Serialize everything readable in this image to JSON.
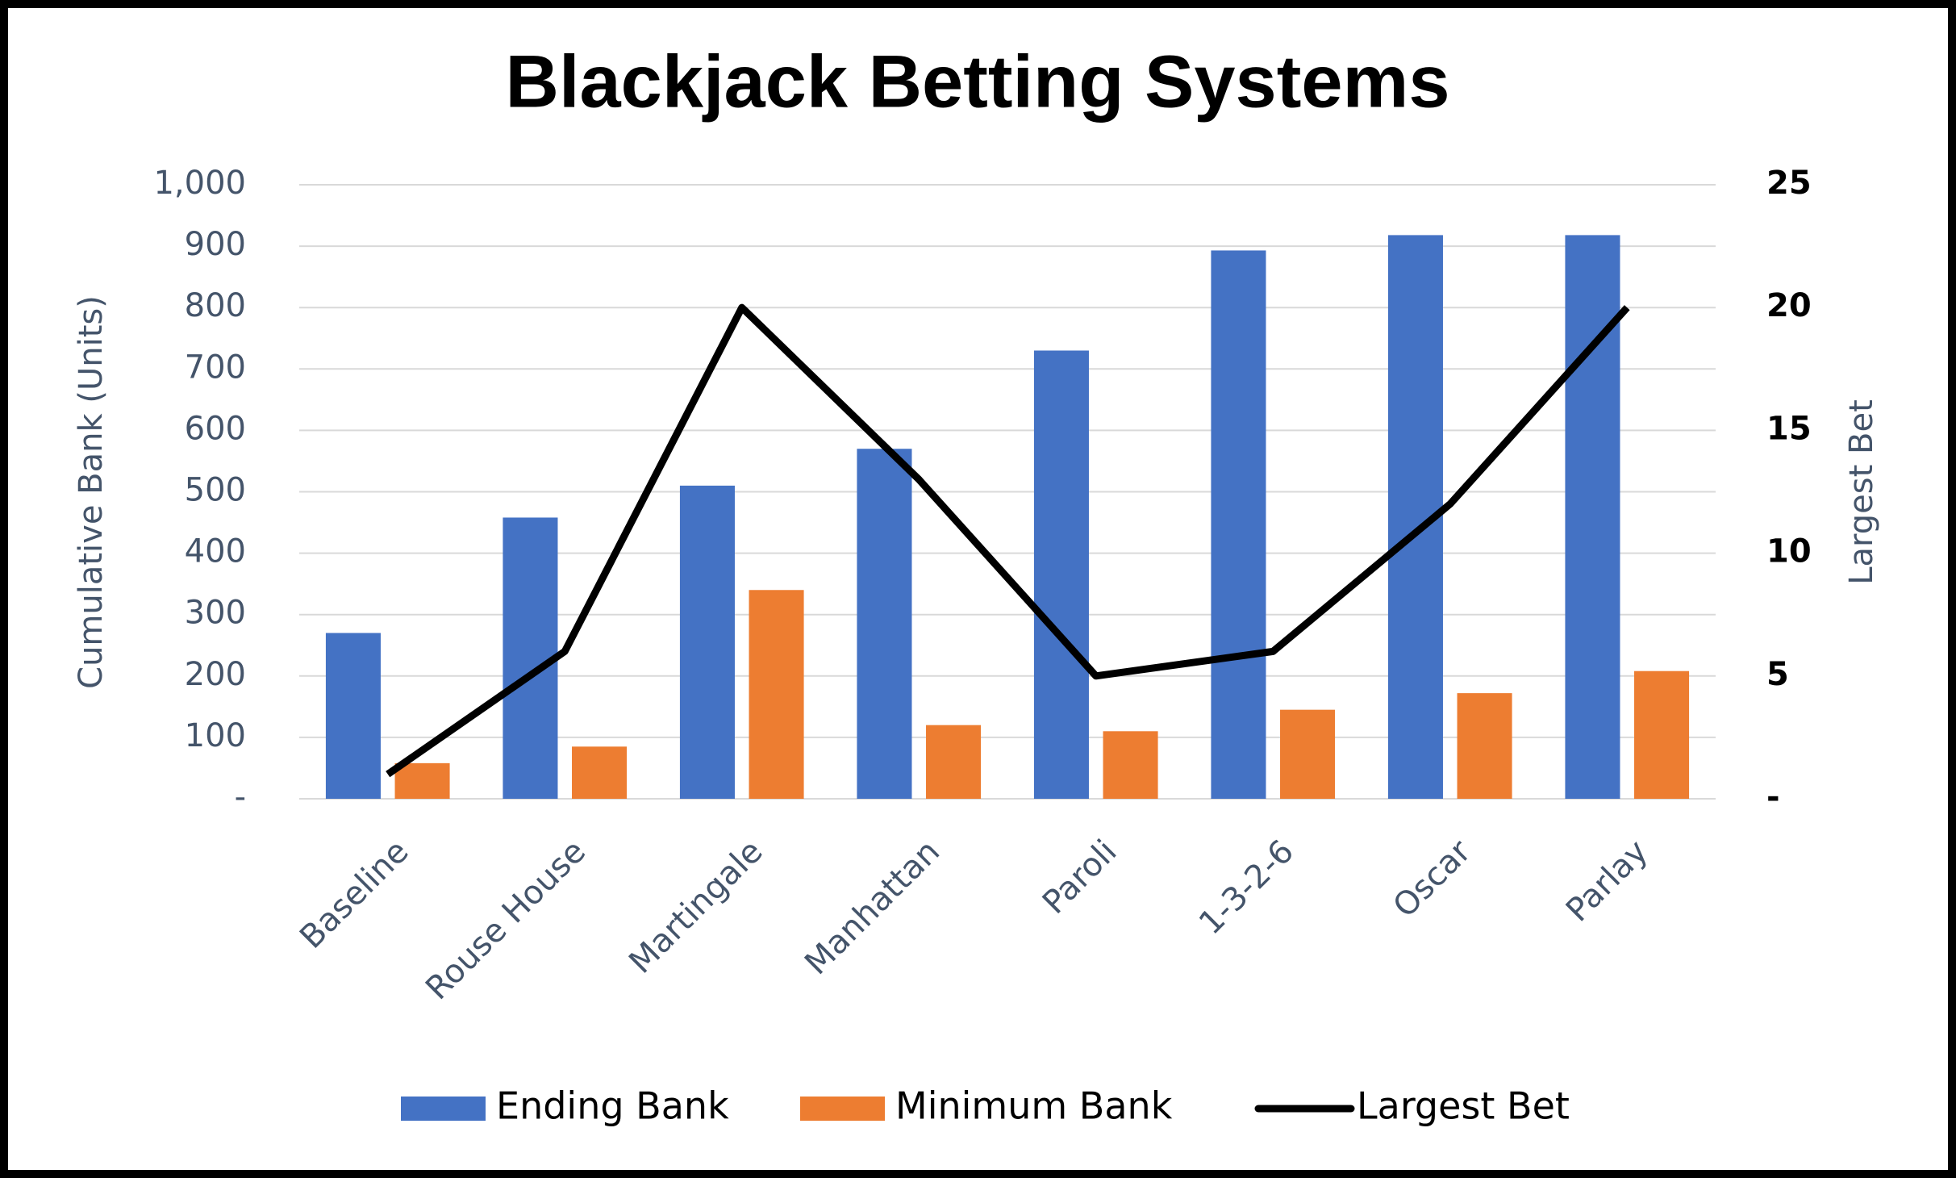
{
  "chart_data": {
    "type": "bar_line",
    "title": "Blackjack Betting Systems",
    "ylabel": "Cumulative Bank (Units)",
    "y2label": "Largest Bet",
    "categories": [
      "Baseline",
      "Rouse House",
      "Martingale",
      "Manhattan",
      "Paroli",
      "1-3-2-6",
      "Oscar",
      "Parlay"
    ],
    "series": [
      {
        "name": "Ending Bank",
        "type": "bar",
        "color": "#4472c4",
        "values": [
          270,
          458,
          510,
          570,
          730,
          893,
          918,
          918
        ]
      },
      {
        "name": "Minimum Bank",
        "type": "bar",
        "color": "#ed7d31",
        "values": [
          58,
          85,
          340,
          120,
          110,
          145,
          172,
          208
        ]
      },
      {
        "name": "Largest Bet",
        "type": "line",
        "axis": "y2",
        "color": "#000000",
        "values": [
          1,
          6,
          20,
          13,
          5,
          6,
          12,
          20
        ]
      }
    ],
    "ylim": [
      0,
      1000
    ],
    "yticks": [
      {
        "value": 0,
        "label": "-"
      },
      100,
      200,
      300,
      400,
      500,
      600,
      700,
      800,
      900,
      {
        "value": 1000,
        "label": "1,000"
      }
    ],
    "y2lim": [
      0,
      25
    ],
    "y2ticks": [
      {
        "value": 0,
        "label": "-"
      },
      5,
      10,
      15,
      20,
      25
    ],
    "grid": true,
    "legend": "bottom"
  }
}
